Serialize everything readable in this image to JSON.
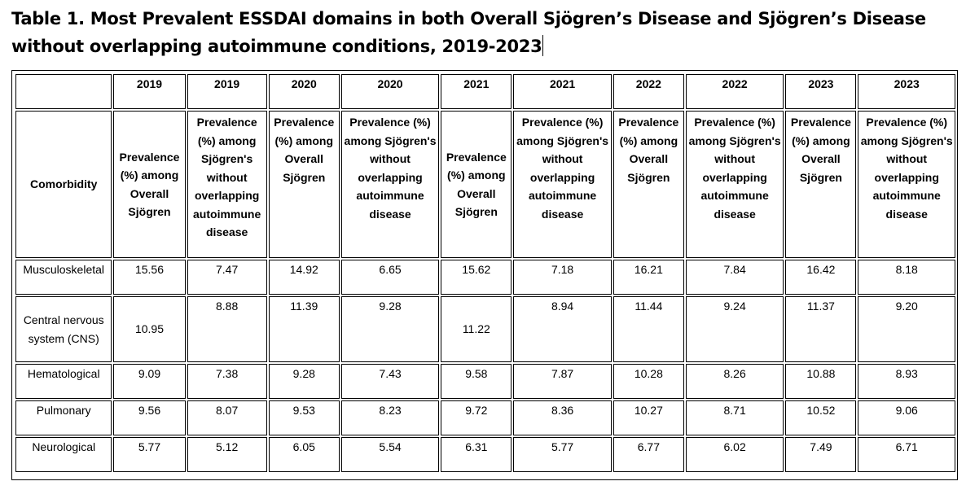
{
  "title": "Table 1. Most Prevalent ESSDAI domains in both Overall Sjögren’s Disease and Sjögren’s Disease without overlapping autoimmune conditions, 2019-2023",
  "years": [
    "2019",
    "2019",
    "2020",
    "2020",
    "2021",
    "2021",
    "2022",
    "2022",
    "2023",
    "2023"
  ],
  "row_header": "Comorbidity",
  "col_desc": {
    "overall": "Prevalence (%) among Overall Sjögren",
    "without": "Prevalence (%) among Sjögren's without overlapping autoimmune disease"
  },
  "rows": [
    {
      "label": "Musculoskeletal",
      "values": [
        "15.56",
        "7.47",
        "14.92",
        "6.65",
        "15.62",
        "7.18",
        "16.21",
        "7.84",
        "16.42",
        "8.18"
      ]
    },
    {
      "label": "Central nervous system (CNS)",
      "values": [
        "10.95",
        "8.88",
        "11.39",
        "9.28",
        "11.22",
        "8.94",
        "11.44",
        "9.24",
        "11.37",
        "9.20"
      ]
    },
    {
      "label": "Hematological",
      "values": [
        "9.09",
        "7.38",
        "9.28",
        "7.43",
        "9.58",
        "7.87",
        "10.28",
        "8.26",
        "10.88",
        "8.93"
      ]
    },
    {
      "label": "Pulmonary",
      "values": [
        "9.56",
        "8.07",
        "9.53",
        "8.23",
        "9.72",
        "8.36",
        "10.27",
        "8.71",
        "10.52",
        "9.06"
      ]
    },
    {
      "label": "Neurological",
      "values": [
        "5.77",
        "5.12",
        "6.05",
        "5.54",
        "6.31",
        "5.77",
        "6.77",
        "6.02",
        "7.49",
        "6.71"
      ]
    }
  ]
}
